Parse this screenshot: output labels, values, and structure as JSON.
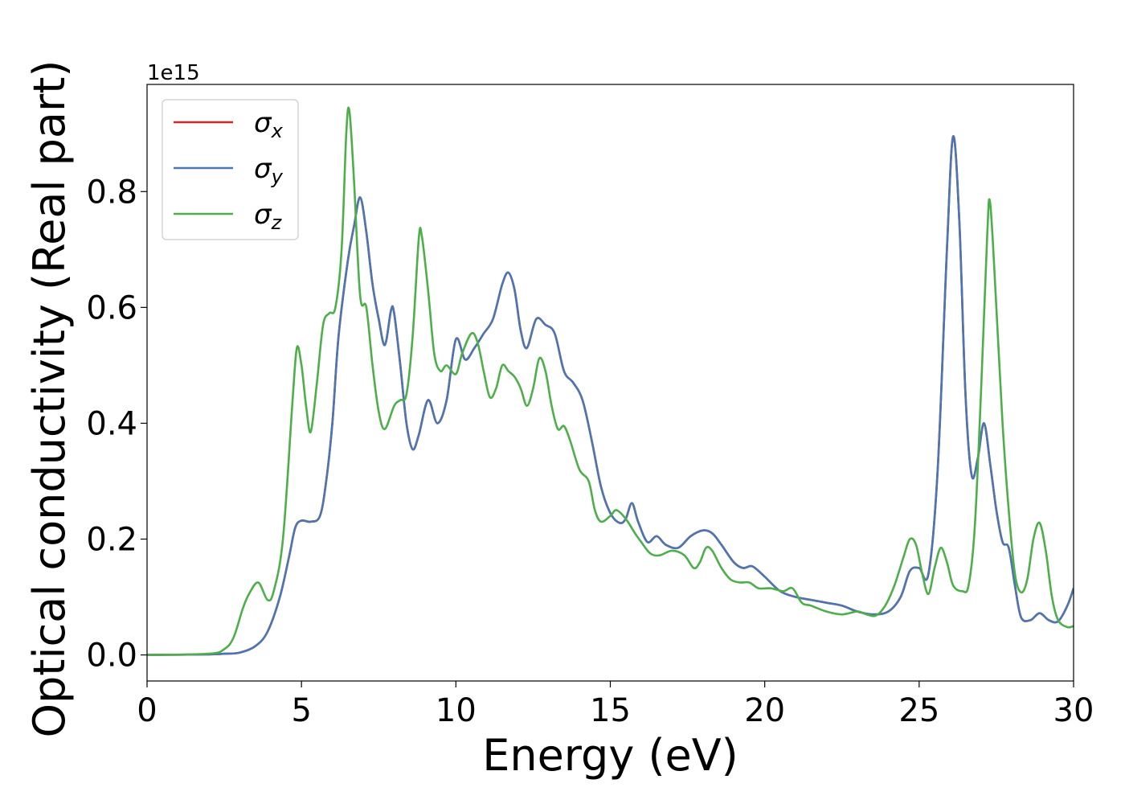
{
  "chart_data": {
    "type": "line",
    "title": "",
    "xlabel": "Energy (eV)",
    "ylabel": "Optical conductivity (Real part)",
    "y_offset_label": "1e15",
    "y_scale_factor": 1000000000000000.0,
    "xlim": [
      0,
      30
    ],
    "ylim": [
      -0.045,
      0.985
    ],
    "xticks": [
      0,
      5,
      10,
      15,
      20,
      25,
      30
    ],
    "xtick_labels": [
      "0",
      "5",
      "10",
      "15",
      "20",
      "25",
      "30"
    ],
    "yticks": [
      0.0,
      0.2,
      0.4,
      0.6,
      0.8
    ],
    "ytick_labels": [
      "0.0",
      "0.2",
      "0.4",
      "0.6",
      "0.8"
    ],
    "grid": false,
    "legend_position": "top-left",
    "series": [
      {
        "name": "σx",
        "legend_symbol": "σ",
        "legend_subscript": "x",
        "color": "#d62728",
        "points": [
          [
            0,
            0
          ],
          [
            2,
            0.001
          ],
          [
            2.5,
            0.002
          ],
          [
            3,
            0.004
          ],
          [
            3.5,
            0.015
          ],
          [
            3.9,
            0.04
          ],
          [
            4.3,
            0.1
          ],
          [
            4.6,
            0.17
          ],
          [
            4.8,
            0.22
          ],
          [
            5,
            0.232
          ],
          [
            5.3,
            0.23
          ],
          [
            5.6,
            0.24
          ],
          [
            5.8,
            0.3
          ],
          [
            6,
            0.4
          ],
          [
            6.2,
            0.55
          ],
          [
            6.5,
            0.68
          ],
          [
            6.7,
            0.74
          ],
          [
            6.9,
            0.79
          ],
          [
            7.1,
            0.73
          ],
          [
            7.3,
            0.64
          ],
          [
            7.5,
            0.58
          ],
          [
            7.7,
            0.535
          ],
          [
            7.9,
            0.595
          ],
          [
            8,
            0.59
          ],
          [
            8.2,
            0.5
          ],
          [
            8.4,
            0.4
          ],
          [
            8.6,
            0.355
          ],
          [
            8.8,
            0.38
          ],
          [
            9.1,
            0.44
          ],
          [
            9.4,
            0.4
          ],
          [
            9.7,
            0.44
          ],
          [
            10,
            0.545
          ],
          [
            10.3,
            0.51
          ],
          [
            10.6,
            0.53
          ],
          [
            10.9,
            0.555
          ],
          [
            11.2,
            0.58
          ],
          [
            11.5,
            0.64
          ],
          [
            11.7,
            0.66
          ],
          [
            11.9,
            0.63
          ],
          [
            12.1,
            0.56
          ],
          [
            12.3,
            0.53
          ],
          [
            12.6,
            0.58
          ],
          [
            12.9,
            0.57
          ],
          [
            13.2,
            0.555
          ],
          [
            13.5,
            0.49
          ],
          [
            13.8,
            0.47
          ],
          [
            14.1,
            0.44
          ],
          [
            14.4,
            0.37
          ],
          [
            14.7,
            0.29
          ],
          [
            15,
            0.245
          ],
          [
            15.3,
            0.228
          ],
          [
            15.5,
            0.235
          ],
          [
            15.7,
            0.262
          ],
          [
            15.9,
            0.23
          ],
          [
            16.2,
            0.195
          ],
          [
            16.5,
            0.205
          ],
          [
            16.8,
            0.19
          ],
          [
            17.2,
            0.185
          ],
          [
            17.6,
            0.205
          ],
          [
            18,
            0.215
          ],
          [
            18.3,
            0.21
          ],
          [
            18.6,
            0.19
          ],
          [
            19,
            0.16
          ],
          [
            19.3,
            0.15
          ],
          [
            19.6,
            0.153
          ],
          [
            20,
            0.135
          ],
          [
            20.5,
            0.11
          ],
          [
            21,
            0.1
          ],
          [
            21.5,
            0.095
          ],
          [
            22,
            0.09
          ],
          [
            22.5,
            0.085
          ],
          [
            23,
            0.075
          ],
          [
            23.5,
            0.07
          ],
          [
            24,
            0.075
          ],
          [
            24.4,
            0.1
          ],
          [
            24.7,
            0.145
          ],
          [
            25,
            0.15
          ],
          [
            25.3,
            0.14
          ],
          [
            25.6,
            0.32
          ],
          [
            25.9,
            0.7
          ],
          [
            26.1,
            0.895
          ],
          [
            26.3,
            0.75
          ],
          [
            26.5,
            0.45
          ],
          [
            26.7,
            0.31
          ],
          [
            26.9,
            0.34
          ],
          [
            27.1,
            0.4
          ],
          [
            27.3,
            0.33
          ],
          [
            27.5,
            0.25
          ],
          [
            27.7,
            0.195
          ],
          [
            27.9,
            0.185
          ],
          [
            28.1,
            0.12
          ],
          [
            28.3,
            0.065
          ],
          [
            28.6,
            0.06
          ],
          [
            28.9,
            0.072
          ],
          [
            29.2,
            0.06
          ],
          [
            29.5,
            0.058
          ],
          [
            29.8,
            0.085
          ],
          [
            30,
            0.115
          ]
        ]
      },
      {
        "name": "σy",
        "legend_symbol": "σ",
        "legend_subscript": "y",
        "color": "#4a76b3",
        "points": [
          [
            0,
            0
          ],
          [
            2,
            0.001
          ],
          [
            2.5,
            0.002
          ],
          [
            3,
            0.004
          ],
          [
            3.5,
            0.015
          ],
          [
            3.9,
            0.04
          ],
          [
            4.3,
            0.1
          ],
          [
            4.6,
            0.17
          ],
          [
            4.8,
            0.22
          ],
          [
            5,
            0.232
          ],
          [
            5.3,
            0.23
          ],
          [
            5.6,
            0.24
          ],
          [
            5.8,
            0.3
          ],
          [
            6,
            0.4
          ],
          [
            6.2,
            0.55
          ],
          [
            6.5,
            0.68
          ],
          [
            6.7,
            0.74
          ],
          [
            6.9,
            0.79
          ],
          [
            7.1,
            0.73
          ],
          [
            7.3,
            0.64
          ],
          [
            7.5,
            0.58
          ],
          [
            7.7,
            0.535
          ],
          [
            7.9,
            0.595
          ],
          [
            8,
            0.59
          ],
          [
            8.2,
            0.5
          ],
          [
            8.4,
            0.4
          ],
          [
            8.6,
            0.355
          ],
          [
            8.8,
            0.38
          ],
          [
            9.1,
            0.44
          ],
          [
            9.4,
            0.4
          ],
          [
            9.7,
            0.44
          ],
          [
            10,
            0.545
          ],
          [
            10.3,
            0.51
          ],
          [
            10.6,
            0.53
          ],
          [
            10.9,
            0.555
          ],
          [
            11.2,
            0.58
          ],
          [
            11.5,
            0.64
          ],
          [
            11.7,
            0.66
          ],
          [
            11.9,
            0.63
          ],
          [
            12.1,
            0.56
          ],
          [
            12.3,
            0.53
          ],
          [
            12.6,
            0.58
          ],
          [
            12.9,
            0.57
          ],
          [
            13.2,
            0.555
          ],
          [
            13.5,
            0.49
          ],
          [
            13.8,
            0.47
          ],
          [
            14.1,
            0.44
          ],
          [
            14.4,
            0.37
          ],
          [
            14.7,
            0.29
          ],
          [
            15,
            0.245
          ],
          [
            15.3,
            0.228
          ],
          [
            15.5,
            0.235
          ],
          [
            15.7,
            0.262
          ],
          [
            15.9,
            0.23
          ],
          [
            16.2,
            0.195
          ],
          [
            16.5,
            0.205
          ],
          [
            16.8,
            0.19
          ],
          [
            17.2,
            0.185
          ],
          [
            17.6,
            0.205
          ],
          [
            18,
            0.215
          ],
          [
            18.3,
            0.21
          ],
          [
            18.6,
            0.19
          ],
          [
            19,
            0.16
          ],
          [
            19.3,
            0.15
          ],
          [
            19.6,
            0.153
          ],
          [
            20,
            0.135
          ],
          [
            20.5,
            0.11
          ],
          [
            21,
            0.1
          ],
          [
            21.5,
            0.095
          ],
          [
            22,
            0.09
          ],
          [
            22.5,
            0.085
          ],
          [
            23,
            0.075
          ],
          [
            23.5,
            0.07
          ],
          [
            24,
            0.075
          ],
          [
            24.4,
            0.1
          ],
          [
            24.7,
            0.145
          ],
          [
            25,
            0.15
          ],
          [
            25.3,
            0.14
          ],
          [
            25.6,
            0.32
          ],
          [
            25.9,
            0.7
          ],
          [
            26.1,
            0.895
          ],
          [
            26.3,
            0.75
          ],
          [
            26.5,
            0.45
          ],
          [
            26.7,
            0.31
          ],
          [
            26.9,
            0.34
          ],
          [
            27.1,
            0.4
          ],
          [
            27.3,
            0.33
          ],
          [
            27.5,
            0.25
          ],
          [
            27.7,
            0.195
          ],
          [
            27.9,
            0.185
          ],
          [
            28.1,
            0.12
          ],
          [
            28.3,
            0.065
          ],
          [
            28.6,
            0.06
          ],
          [
            28.9,
            0.072
          ],
          [
            29.2,
            0.06
          ],
          [
            29.5,
            0.058
          ],
          [
            29.8,
            0.085
          ],
          [
            30,
            0.115
          ]
        ]
      },
      {
        "name": "σz",
        "legend_symbol": "σ",
        "legend_subscript": "z",
        "color": "#4daf4a",
        "points": [
          [
            0,
            0
          ],
          [
            2,
            0.002
          ],
          [
            2.5,
            0.01
          ],
          [
            2.8,
            0.03
          ],
          [
            3.1,
            0.08
          ],
          [
            3.3,
            0.105
          ],
          [
            3.6,
            0.125
          ],
          [
            3.9,
            0.095
          ],
          [
            4.1,
            0.11
          ],
          [
            4.4,
            0.2
          ],
          [
            4.7,
            0.43
          ],
          [
            4.85,
            0.53
          ],
          [
            5,
            0.5
          ],
          [
            5.15,
            0.43
          ],
          [
            5.3,
            0.385
          ],
          [
            5.5,
            0.47
          ],
          [
            5.7,
            0.57
          ],
          [
            5.9,
            0.59
          ],
          [
            6.1,
            0.6
          ],
          [
            6.3,
            0.7
          ],
          [
            6.45,
            0.9
          ],
          [
            6.55,
            0.94
          ],
          [
            6.7,
            0.82
          ],
          [
            6.9,
            0.62
          ],
          [
            7.1,
            0.6
          ],
          [
            7.3,
            0.5
          ],
          [
            7.5,
            0.42
          ],
          [
            7.7,
            0.39
          ],
          [
            8,
            0.43
          ],
          [
            8.2,
            0.44
          ],
          [
            8.4,
            0.45
          ],
          [
            8.6,
            0.55
          ],
          [
            8.8,
            0.72
          ],
          [
            8.9,
            0.722
          ],
          [
            9.1,
            0.63
          ],
          [
            9.3,
            0.52
          ],
          [
            9.5,
            0.49
          ],
          [
            9.7,
            0.5
          ],
          [
            10,
            0.485
          ],
          [
            10.2,
            0.52
          ],
          [
            10.5,
            0.555
          ],
          [
            10.7,
            0.54
          ],
          [
            10.9,
            0.49
          ],
          [
            11.1,
            0.445
          ],
          [
            11.3,
            0.46
          ],
          [
            11.5,
            0.5
          ],
          [
            11.7,
            0.49
          ],
          [
            11.9,
            0.48
          ],
          [
            12.1,
            0.46
          ],
          [
            12.3,
            0.43
          ],
          [
            12.5,
            0.46
          ],
          [
            12.7,
            0.512
          ],
          [
            12.9,
            0.49
          ],
          [
            13.1,
            0.43
          ],
          [
            13.3,
            0.39
          ],
          [
            13.5,
            0.395
          ],
          [
            13.7,
            0.37
          ],
          [
            14,
            0.32
          ],
          [
            14.3,
            0.3
          ],
          [
            14.5,
            0.25
          ],
          [
            14.7,
            0.23
          ],
          [
            15,
            0.24
          ],
          [
            15.2,
            0.25
          ],
          [
            15.5,
            0.235
          ],
          [
            15.8,
            0.21
          ],
          [
            16,
            0.195
          ],
          [
            16.3,
            0.175
          ],
          [
            16.6,
            0.172
          ],
          [
            17,
            0.18
          ],
          [
            17.4,
            0.172
          ],
          [
            17.7,
            0.15
          ],
          [
            17.9,
            0.16
          ],
          [
            18.1,
            0.185
          ],
          [
            18.3,
            0.18
          ],
          [
            18.6,
            0.15
          ],
          [
            18.9,
            0.13
          ],
          [
            19.2,
            0.125
          ],
          [
            19.5,
            0.125
          ],
          [
            19.8,
            0.115
          ],
          [
            20.2,
            0.115
          ],
          [
            20.6,
            0.11
          ],
          [
            20.9,
            0.115
          ],
          [
            21.2,
            0.09
          ],
          [
            21.5,
            0.085
          ],
          [
            22,
            0.075
          ],
          [
            22.5,
            0.07
          ],
          [
            23,
            0.075
          ],
          [
            23.3,
            0.07
          ],
          [
            23.6,
            0.068
          ],
          [
            23.9,
            0.085
          ],
          [
            24.2,
            0.12
          ],
          [
            24.5,
            0.17
          ],
          [
            24.7,
            0.2
          ],
          [
            24.9,
            0.19
          ],
          [
            25.1,
            0.14
          ],
          [
            25.3,
            0.105
          ],
          [
            25.5,
            0.15
          ],
          [
            25.7,
            0.185
          ],
          [
            25.9,
            0.16
          ],
          [
            26.1,
            0.12
          ],
          [
            26.4,
            0.11
          ],
          [
            26.6,
            0.12
          ],
          [
            26.8,
            0.22
          ],
          [
            27,
            0.45
          ],
          [
            27.2,
            0.72
          ],
          [
            27.3,
            0.78
          ],
          [
            27.5,
            0.6
          ],
          [
            27.7,
            0.4
          ],
          [
            27.9,
            0.25
          ],
          [
            28.1,
            0.14
          ],
          [
            28.3,
            0.108
          ],
          [
            28.5,
            0.13
          ],
          [
            28.7,
            0.2
          ],
          [
            28.9,
            0.228
          ],
          [
            29.1,
            0.18
          ],
          [
            29.3,
            0.1
          ],
          [
            29.5,
            0.06
          ],
          [
            29.8,
            0.048
          ],
          [
            30,
            0.05
          ]
        ]
      }
    ]
  }
}
